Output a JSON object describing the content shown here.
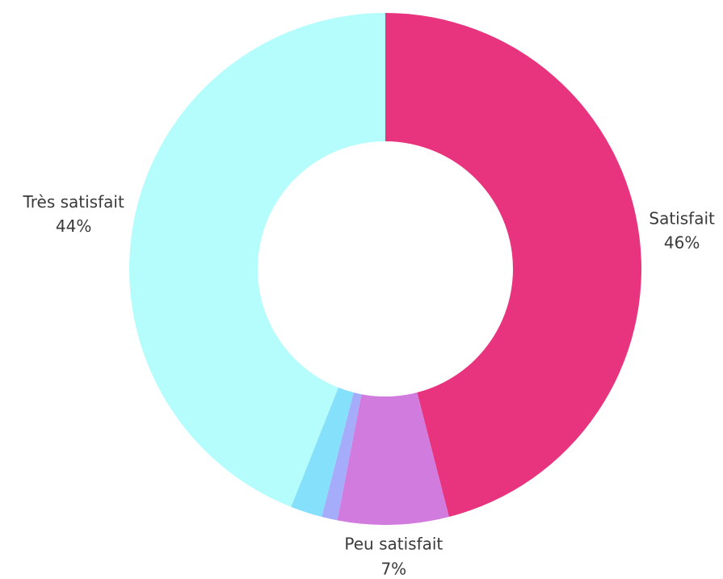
{
  "chart_data": {
    "type": "donut",
    "categories": [
      "Satisfait",
      "Peu satisfait",
      null,
      null,
      "Très satisfait"
    ],
    "values": [
      46,
      7,
      1,
      2,
      44
    ],
    "value_labels": [
      "46%",
      "7%",
      null,
      null,
      "44%"
    ],
    "colors": [
      "#e8347e",
      "#d17bdf",
      "#a5adfb",
      "#85e0fb",
      "#b5fdfd"
    ]
  }
}
